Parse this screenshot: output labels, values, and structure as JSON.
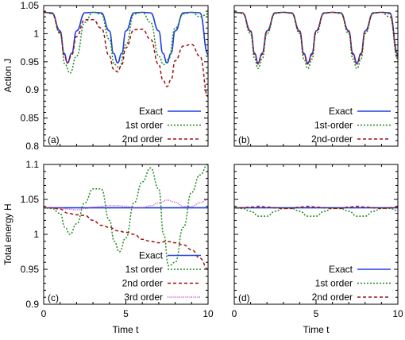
{
  "chart_data": [
    {
      "type": "line",
      "panel_label": "(a)",
      "ylabel": "Action J",
      "xlabel": "",
      "xlim": [
        0,
        10
      ],
      "ylim": [
        0.8,
        1.05
      ],
      "xticks": [
        "0",
        "5",
        "10"
      ],
      "yticks": [
        "0.8",
        "0.85",
        "0.9",
        "0.95",
        "1",
        "1.05"
      ],
      "legend_position": "bottom-right",
      "series": [
        {
          "name": "Exact",
          "color": "#1f3fe0",
          "dash": "solid",
          "x": [
            0,
            0.5,
            1,
            1.25,
            1.45,
            1.7,
            2,
            2.5,
            3,
            3.5,
            4,
            4.25,
            4.5,
            4.75,
            5,
            5.5,
            6,
            6.5,
            7,
            7.25,
            7.5,
            7.75,
            8,
            8.5,
            9,
            9.5,
            10
          ],
          "y": [
            1.038,
            1.037,
            1.005,
            0.965,
            0.948,
            0.965,
            1.005,
            1.037,
            1.038,
            1.037,
            1.005,
            0.965,
            0.948,
            0.965,
            1.005,
            1.037,
            1.038,
            1.037,
            1.005,
            0.965,
            0.948,
            0.965,
            1.005,
            1.037,
            1.038,
            1.037,
            0.963
          ]
        },
        {
          "name": "1st order",
          "color": "#1a8a1a",
          "dash": "dot",
          "x": [
            0,
            0.5,
            1,
            1.3,
            1.6,
            2,
            2.5,
            3,
            3.5,
            4,
            4.3,
            4.6,
            5,
            5.5,
            6,
            6.5,
            7,
            7.3,
            7.6,
            8,
            8.5,
            9,
            9.5,
            10
          ],
          "y": [
            1.038,
            1.036,
            1.0,
            0.945,
            0.93,
            0.96,
            1.02,
            1.038,
            1.035,
            0.99,
            0.945,
            0.94,
            0.98,
            1.035,
            1.038,
            1.02,
            0.96,
            0.945,
            0.955,
            1.01,
            1.035,
            1.038,
            1.03,
            1.035
          ]
        },
        {
          "name": "2nd order",
          "color": "#a01010",
          "dash": "dash",
          "x": [
            0,
            0.5,
            1,
            1.25,
            1.45,
            1.7,
            2,
            2.5,
            3,
            3.5,
            4,
            4.25,
            4.5,
            4.75,
            5,
            5.5,
            6,
            6.5,
            7,
            7.25,
            7.5,
            7.75,
            8,
            8.5,
            9,
            9.5,
            10
          ],
          "y": [
            1.038,
            1.036,
            1.002,
            0.962,
            0.948,
            0.962,
            0.995,
            1.025,
            1.025,
            1.01,
            0.96,
            0.937,
            0.932,
            0.945,
            0.975,
            1.007,
            1.008,
            0.99,
            0.945,
            0.918,
            0.906,
            0.918,
            0.952,
            0.978,
            0.981,
            0.96,
            0.888
          ]
        }
      ],
      "legend_labels": [
        "Exact",
        "1st order",
        "2nd order"
      ]
    },
    {
      "type": "line",
      "panel_label": "(b)",
      "ylabel": "",
      "xlabel": "",
      "xlim": [
        0,
        10
      ],
      "ylim": [
        0.8,
        1.05
      ],
      "xticks": [
        "0",
        "5",
        "10"
      ],
      "yticks": [],
      "legend_position": "bottom-right",
      "series": [
        {
          "name": "Exact",
          "color": "#1f3fe0",
          "dash": "solid",
          "x": [
            0,
            0.5,
            1,
            1.25,
            1.45,
            1.7,
            2,
            2.5,
            3,
            3.5,
            4,
            4.25,
            4.5,
            4.75,
            5,
            5.5,
            6,
            6.5,
            7,
            7.25,
            7.5,
            7.75,
            8,
            8.5,
            9,
            9.5,
            10
          ],
          "y": [
            1.038,
            1.037,
            1.005,
            0.965,
            0.948,
            0.965,
            1.005,
            1.037,
            1.038,
            1.037,
            1.005,
            0.965,
            0.948,
            0.965,
            1.005,
            1.037,
            1.038,
            1.037,
            1.005,
            0.965,
            0.948,
            0.965,
            1.005,
            1.037,
            1.038,
            1.037,
            0.963
          ]
        },
        {
          "name": "1st-order",
          "color": "#1a8a1a",
          "dash": "dot",
          "x": [
            0,
            0.5,
            1,
            1.25,
            1.45,
            1.7,
            2,
            2.5,
            3,
            3.5,
            4,
            4.25,
            4.5,
            4.75,
            5,
            5.5,
            6,
            6.5,
            7,
            7.25,
            7.5,
            7.75,
            8,
            8.5,
            9,
            9.5,
            10
          ],
          "y": [
            1.038,
            1.036,
            1.0,
            0.955,
            0.938,
            0.955,
            1.0,
            1.036,
            1.038,
            1.036,
            1.0,
            0.955,
            0.938,
            0.955,
            1.0,
            1.036,
            1.038,
            1.036,
            1.0,
            0.955,
            0.938,
            0.955,
            1.0,
            1.036,
            1.038,
            1.03,
            0.955
          ]
        },
        {
          "name": "2nd-order",
          "color": "#a01010",
          "dash": "dash",
          "x": [
            0,
            0.5,
            1,
            1.25,
            1.45,
            1.7,
            2,
            2.5,
            3,
            3.5,
            4,
            4.25,
            4.5,
            4.75,
            5,
            5.5,
            6,
            6.5,
            7,
            7.25,
            7.5,
            7.75,
            8,
            8.5,
            9,
            9.5,
            10
          ],
          "y": [
            1.038,
            1.037,
            1.004,
            0.963,
            0.946,
            0.963,
            1.004,
            1.037,
            1.038,
            1.037,
            1.004,
            0.963,
            0.946,
            0.963,
            1.004,
            1.037,
            1.038,
            1.037,
            1.004,
            0.963,
            0.946,
            0.963,
            1.004,
            1.037,
            1.038,
            1.036,
            0.96
          ]
        }
      ],
      "legend_labels": [
        "Exact",
        "1st-order",
        "2nd-order"
      ]
    },
    {
      "type": "line",
      "panel_label": "(c)",
      "ylabel": "Total energy H",
      "xlabel": "Time t",
      "xlim": [
        0,
        10
      ],
      "ylim": [
        0.9,
        1.1
      ],
      "xticks": [
        "0",
        "5",
        "10"
      ],
      "yticks": [
        "0.9",
        "0.95",
        "1",
        "1.05",
        "1.1"
      ],
      "legend_position": "bottom-right",
      "series": [
        {
          "name": "Exact",
          "color": "#1f3fe0",
          "dash": "solid",
          "x": [
            0,
            10
          ],
          "y": [
            1.038,
            1.038
          ]
        },
        {
          "name": "1st order",
          "color": "#1a8a1a",
          "dash": "dot",
          "x": [
            0,
            0.5,
            1,
            1.3,
            1.6,
            2,
            2.5,
            3,
            3.5,
            4,
            4.3,
            4.6,
            5,
            5.5,
            6,
            6.5,
            7,
            7.3,
            7.6,
            8,
            8.5,
            9,
            9.5,
            10
          ],
          "y": [
            1.038,
            1.037,
            1.03,
            1.01,
            1.0,
            1.015,
            1.045,
            1.065,
            1.065,
            1.02,
            0.99,
            0.975,
            0.995,
            1.045,
            1.075,
            1.095,
            1.065,
            1.0,
            0.955,
            0.96,
            1.01,
            1.06,
            1.085,
            1.1
          ]
        },
        {
          "name": "2nd order",
          "color": "#a01010",
          "dash": "dash",
          "x": [
            0,
            0.5,
            1,
            1.5,
            2,
            2.5,
            3,
            3.5,
            4,
            4.5,
            5,
            5.5,
            6,
            6.5,
            7,
            7.5,
            8,
            8.5,
            9,
            9.5,
            10
          ],
          "y": [
            1.038,
            1.038,
            1.036,
            1.03,
            1.028,
            1.027,
            1.02,
            1.013,
            1.01,
            1.005,
            1.003,
            1.0,
            0.993,
            0.99,
            0.988,
            0.99,
            0.988,
            0.985,
            0.978,
            0.966,
            0.95
          ]
        },
        {
          "name": "3rd order",
          "color": "#c040c0",
          "dash": "finedot",
          "x": [
            0,
            1,
            1.5,
            2,
            2.5,
            3,
            3.5,
            4,
            4.5,
            5,
            5.5,
            6,
            6.5,
            7,
            7.5,
            8,
            8.5,
            9,
            9.5,
            10
          ],
          "y": [
            1.038,
            1.038,
            1.036,
            1.035,
            1.037,
            1.039,
            1.04,
            1.041,
            1.041,
            1.04,
            1.038,
            1.038,
            1.041,
            1.045,
            1.049,
            1.046,
            1.04,
            1.04,
            1.045,
            1.05
          ]
        }
      ],
      "legend_labels": [
        "Exact",
        "1st order",
        "2nd order",
        "3rd order"
      ]
    },
    {
      "type": "line",
      "panel_label": "(d)",
      "ylabel": "",
      "xlabel": "Time t",
      "xlim": [
        0,
        10
      ],
      "ylim": [
        0.9,
        1.1
      ],
      "xticks": [
        "0",
        "5",
        "10"
      ],
      "yticks": [],
      "legend_position": "bottom-right",
      "series": [
        {
          "name": "Exact",
          "color": "#1f3fe0",
          "dash": "solid",
          "x": [
            0,
            10
          ],
          "y": [
            1.038,
            1.038
          ]
        },
        {
          "name": "1st order",
          "color": "#1a8a1a",
          "dash": "dot",
          "x": [
            0,
            0.5,
            1,
            1.5,
            2,
            2.5,
            3,
            3.5,
            4,
            4.5,
            5,
            5.5,
            6,
            6.5,
            7,
            7.5,
            8,
            8.5,
            9,
            9.5,
            10
          ],
          "y": [
            1.038,
            1.037,
            1.033,
            1.026,
            1.026,
            1.033,
            1.037,
            1.037,
            1.033,
            1.026,
            1.026,
            1.033,
            1.037,
            1.037,
            1.033,
            1.026,
            1.026,
            1.033,
            1.037,
            1.037,
            1.034
          ]
        },
        {
          "name": "2nd order",
          "color": "#a01010",
          "dash": "dash",
          "x": [
            0,
            0.5,
            1,
            1.5,
            2,
            2.5,
            3,
            3.5,
            4,
            4.5,
            5,
            5.5,
            6,
            6.5,
            7,
            7.5,
            8,
            8.5,
            9,
            9.5,
            10
          ],
          "y": [
            1.038,
            1.038,
            1.039,
            1.04,
            1.039,
            1.038,
            1.037,
            1.037,
            1.039,
            1.04,
            1.039,
            1.038,
            1.037,
            1.037,
            1.039,
            1.04,
            1.039,
            1.038,
            1.037,
            1.038,
            1.039
          ]
        }
      ],
      "legend_labels": [
        "Exact",
        "1st order",
        "2nd order"
      ]
    }
  ]
}
